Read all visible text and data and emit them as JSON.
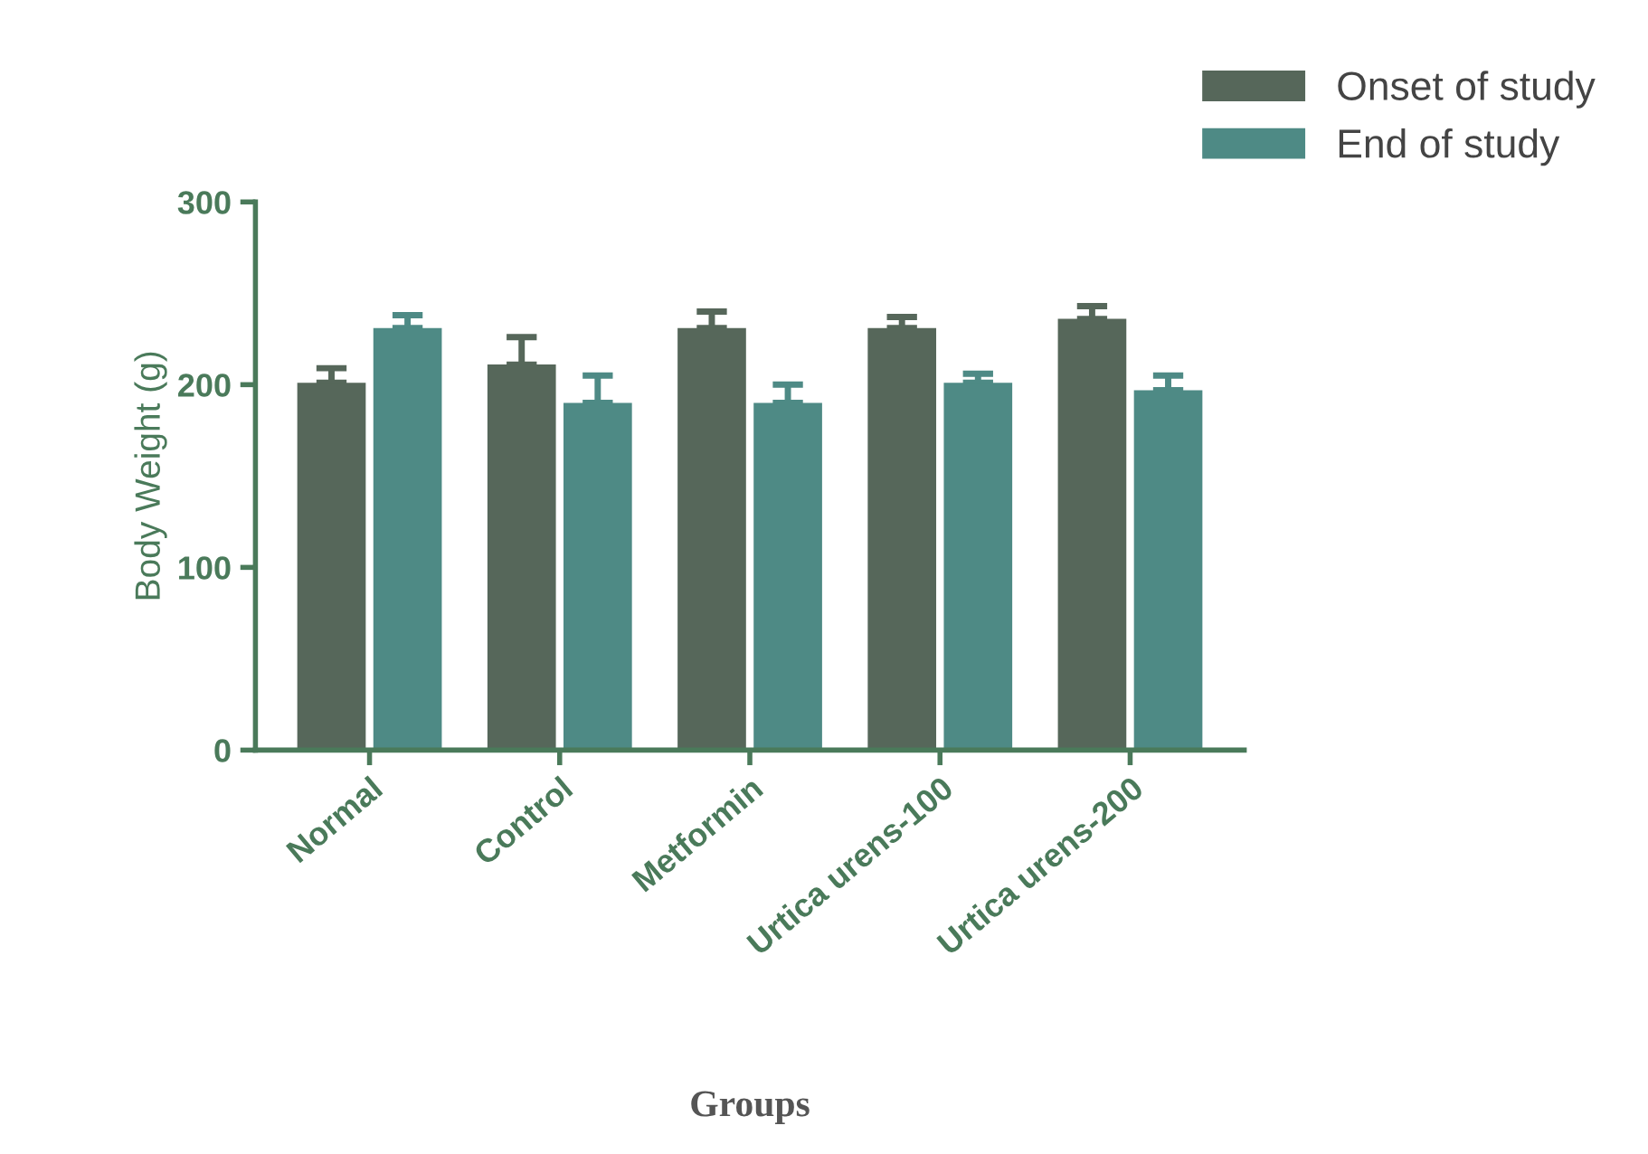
{
  "chart_data": {
    "type": "bar",
    "xlabel": "Groups",
    "ylabel": "Body Weight (g)",
    "categories": [
      "Normal",
      "Control",
      "Metformin",
      "Urtica urens-100",
      "Urtica urens-200"
    ],
    "series": [
      {
        "name": "Onset of study",
        "color": "#56675a",
        "values": [
          201,
          211,
          231,
          231,
          236
        ],
        "errors": [
          [
            201,
            209
          ],
          [
            211,
            226
          ],
          [
            231,
            240
          ],
          [
            231,
            237
          ],
          [
            236,
            243
          ]
        ]
      },
      {
        "name": "End of study",
        "color": "#4e8a85",
        "values": [
          231,
          190,
          190,
          201,
          197
        ],
        "errors": [
          [
            231,
            238
          ],
          [
            190,
            205
          ],
          [
            190,
            200
          ],
          [
            201,
            206
          ],
          [
            197,
            205
          ]
        ]
      }
    ],
    "ylim": [
      0,
      300
    ],
    "yticks": [
      0,
      100,
      200,
      300
    ],
    "grid": false,
    "legend": "top right"
  }
}
